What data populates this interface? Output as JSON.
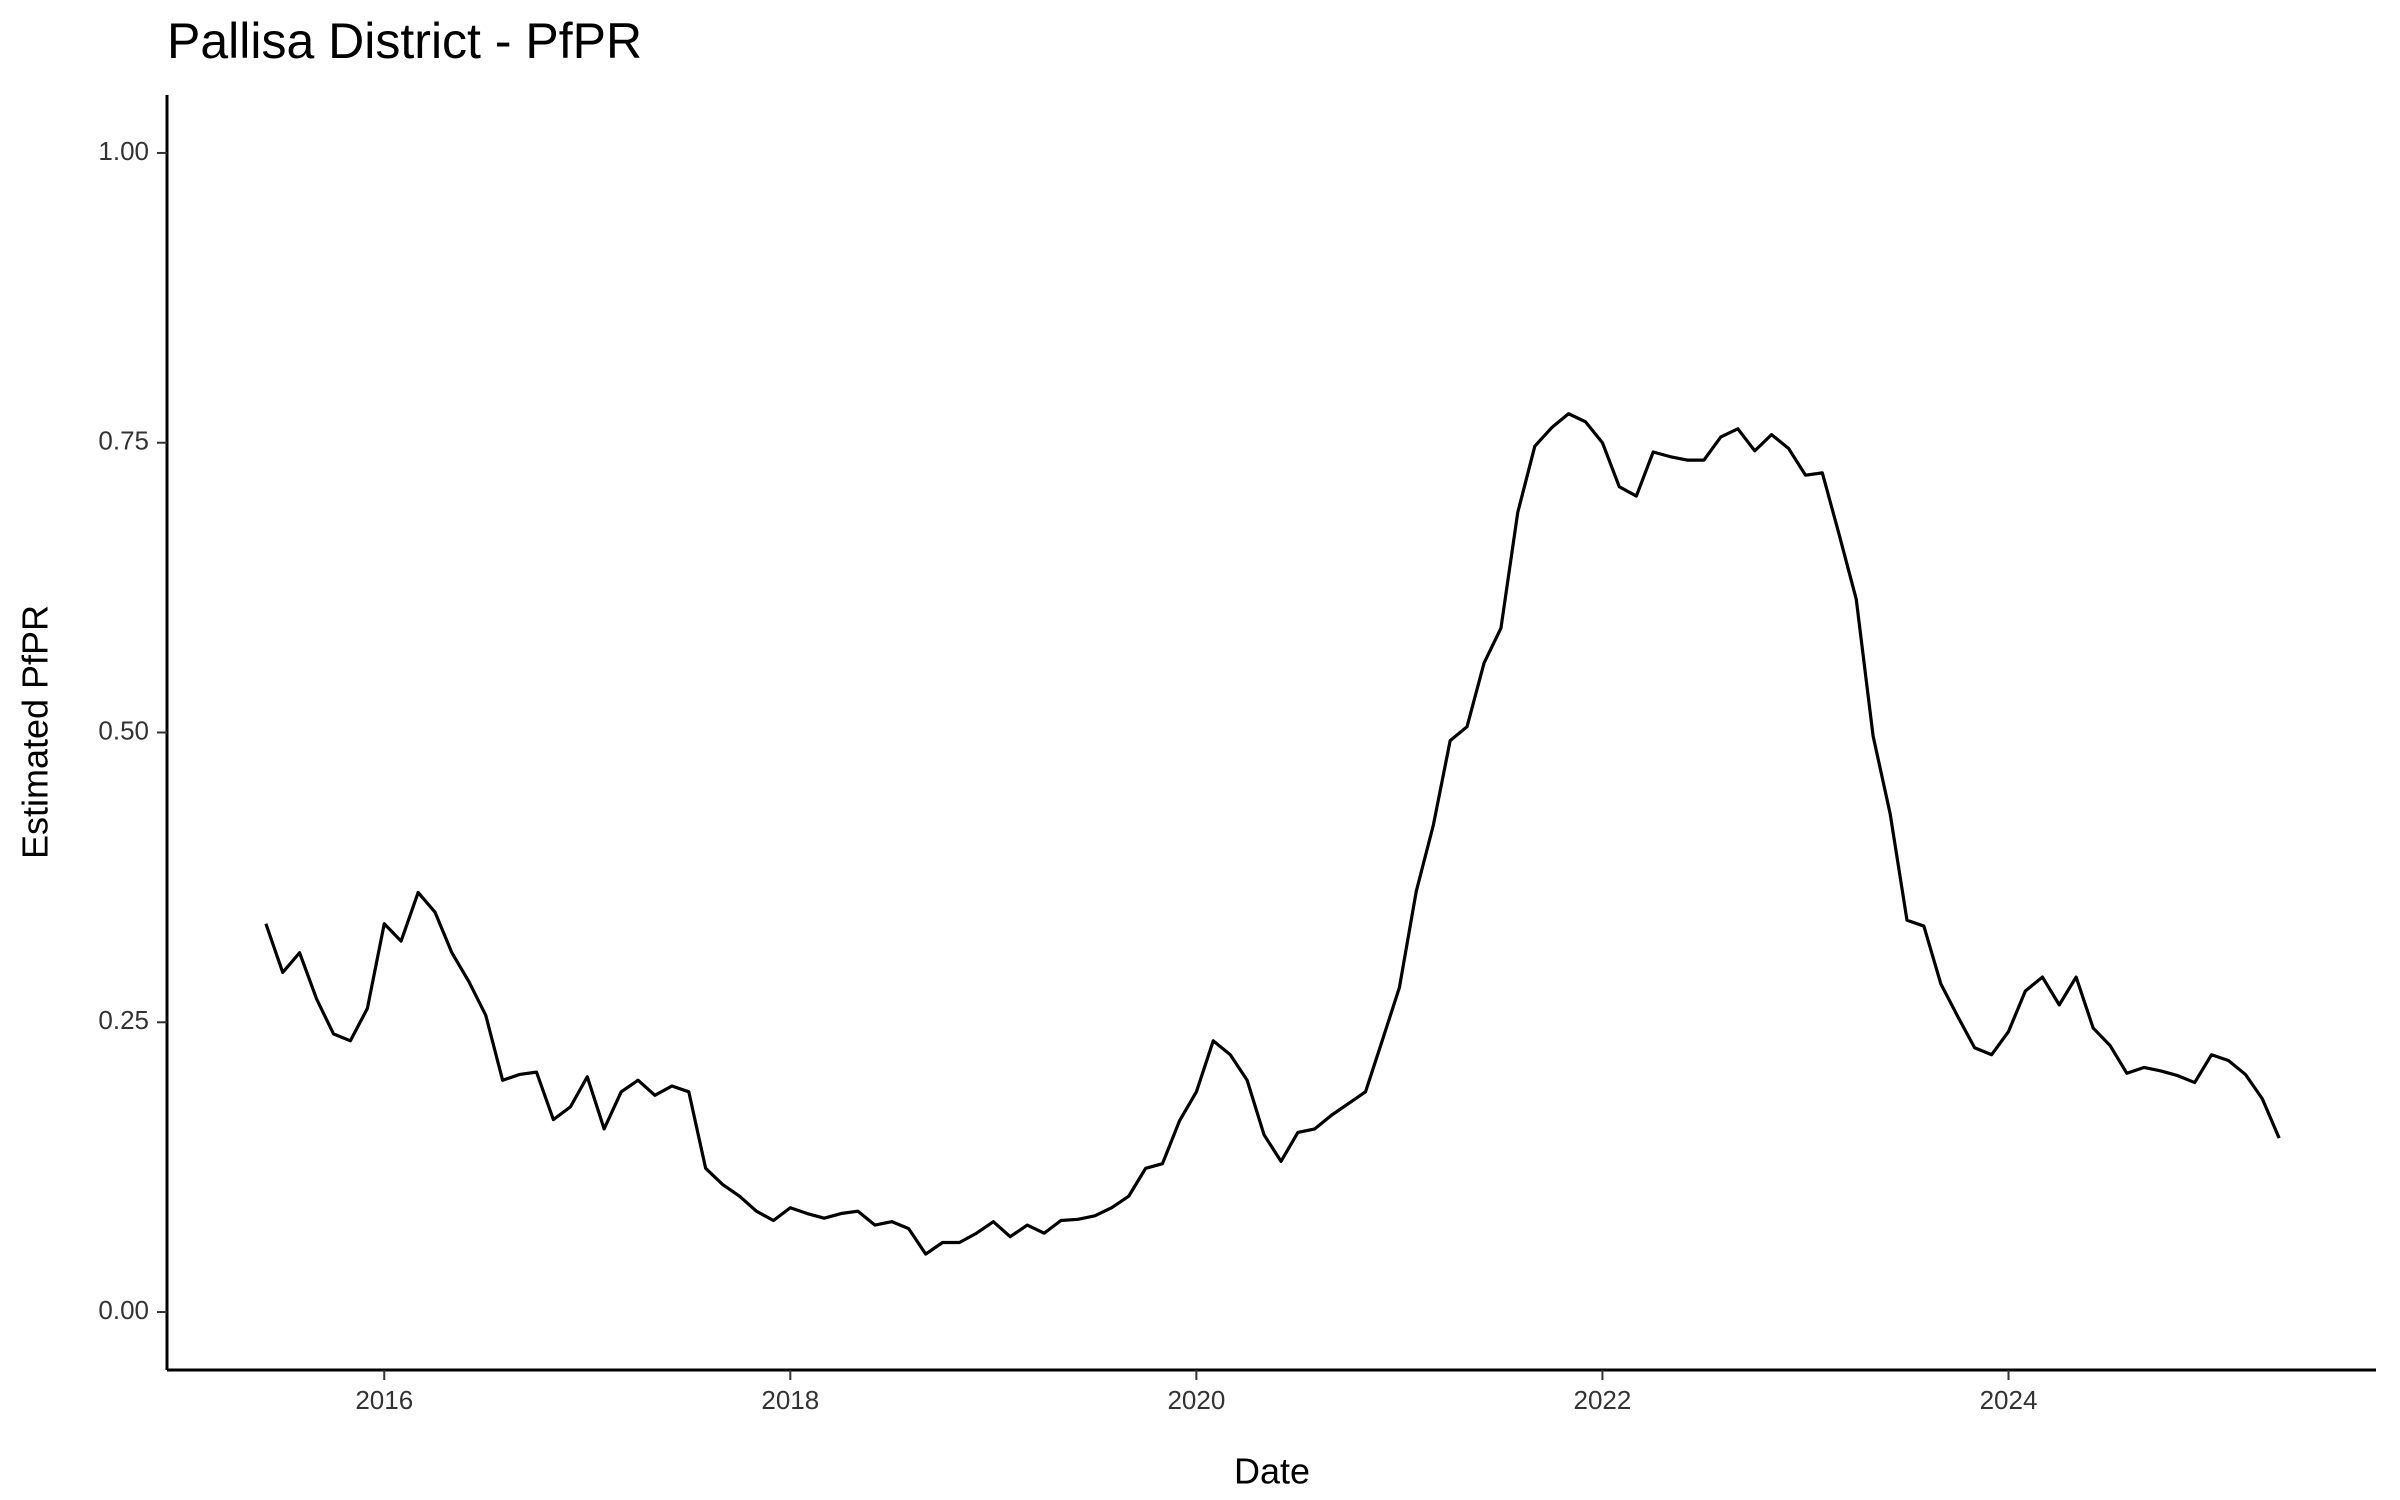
{
  "chart_data": {
    "type": "line",
    "title": "Pallisa District - PfPR",
    "x_label": "Date",
    "y_label": "Estimated PfPR",
    "x": [
      2015.417,
      2015.5,
      2015.583,
      2015.667,
      2015.75,
      2015.833,
      2015.917,
      2016.0,
      2016.083,
      2016.167,
      2016.25,
      2016.333,
      2016.417,
      2016.5,
      2016.583,
      2016.667,
      2016.75,
      2016.833,
      2016.917,
      2017.0,
      2017.083,
      2017.167,
      2017.25,
      2017.333,
      2017.417,
      2017.5,
      2017.583,
      2017.667,
      2017.75,
      2017.833,
      2017.917,
      2018.0,
      2018.083,
      2018.167,
      2018.25,
      2018.333,
      2018.417,
      2018.5,
      2018.583,
      2018.667,
      2018.75,
      2018.833,
      2018.917,
      2019.0,
      2019.083,
      2019.167,
      2019.25,
      2019.333,
      2019.417,
      2019.5,
      2019.583,
      2019.667,
      2019.75,
      2019.833,
      2019.917,
      2020.0,
      2020.083,
      2020.167,
      2020.25,
      2020.333,
      2020.417,
      2020.5,
      2020.583,
      2020.667,
      2020.75,
      2020.833,
      2020.917,
      2021.0,
      2021.083,
      2021.167,
      2021.25,
      2021.333,
      2021.417,
      2021.5,
      2021.583,
      2021.667,
      2021.75,
      2021.833,
      2021.917,
      2022.0,
      2022.083,
      2022.167,
      2022.25,
      2022.333,
      2022.417,
      2022.5,
      2022.583,
      2022.667,
      2022.75,
      2022.833,
      2022.917,
      2023.0,
      2023.083,
      2023.167,
      2023.25,
      2023.333,
      2023.417,
      2023.5,
      2023.583,
      2023.667,
      2023.75,
      2023.833,
      2023.917,
      2024.0,
      2024.083,
      2024.167,
      2024.25,
      2024.333,
      2024.417,
      2024.5,
      2024.583,
      2024.667,
      2024.75,
      2024.833,
      2024.917,
      2025.0,
      2025.083,
      2025.167,
      2025.25,
      2025.333
    ],
    "series": [
      {
        "color": "#000000",
        "values": [
          0.335,
          0.293,
          0.31,
          0.27,
          0.24,
          0.234,
          0.262,
          0.335,
          0.32,
          0.362,
          0.345,
          0.31,
          0.285,
          0.256,
          0.2,
          0.205,
          0.207,
          0.166,
          0.177,
          0.203,
          0.158,
          0.19,
          0.2,
          0.187,
          0.195,
          0.19,
          0.124,
          0.11,
          0.1,
          0.087,
          0.079,
          0.09,
          0.085,
          0.081,
          0.085,
          0.087,
          0.075,
          0.078,
          0.072,
          0.05,
          0.06,
          0.06,
          0.068,
          0.078,
          0.065,
          0.075,
          0.068,
          0.079,
          0.08,
          0.083,
          0.09,
          0.1,
          0.124,
          0.128,
          0.165,
          0.19,
          0.234,
          0.222,
          0.2,
          0.153,
          0.13,
          0.155,
          0.158,
          0.17,
          0.18,
          0.19,
          0.235,
          0.28,
          0.363,
          0.42,
          0.493,
          0.505,
          0.56,
          0.59,
          0.69,
          0.747,
          0.763,
          0.775,
          0.768,
          0.75,
          0.712,
          0.704,
          0.742,
          0.738,
          0.735,
          0.735,
          0.755,
          0.762,
          0.743,
          0.757,
          0.745,
          0.722,
          0.724,
          0.67,
          0.615,
          0.497,
          0.43,
          0.338,
          0.333,
          0.283,
          0.255,
          0.228,
          0.222,
          0.242,
          0.277,
          0.289,
          0.265,
          0.289,
          0.245,
          0.23,
          0.206,
          0.211,
          0.208,
          0.204,
          0.198,
          0.222,
          0.217,
          0.205,
          0.184,
          0.15
        ]
      }
    ],
    "xlim": [
      2014.93,
      2025.81
    ],
    "xticks": [
      2016,
      2018,
      2020,
      2022,
      2024
    ],
    "ylim": [
      -0.05,
      1.05
    ],
    "yticks": [
      {
        "value": 0,
        "label": "0.00"
      },
      {
        "value": 0.25,
        "label": "0.25"
      },
      {
        "value": 0.5,
        "label": "0.50"
      },
      {
        "value": 0.75,
        "label": "0.75"
      },
      {
        "value": 1,
        "label": "1.00"
      }
    ],
    "grid": false
  }
}
